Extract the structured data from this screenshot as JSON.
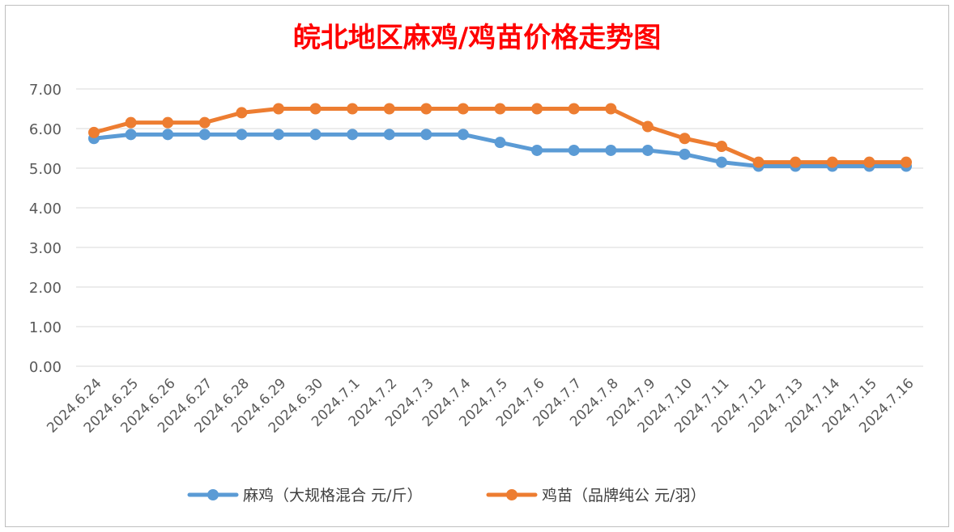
{
  "chart_data": {
    "type": "line",
    "title": "皖北地区麻鸡/鸡苗价格走势图",
    "categories": [
      "2024.6.24",
      "2024.6.25",
      "2024.6.26",
      "2024.6.27",
      "2024.6.28",
      "2024.6.29",
      "2024.6.30",
      "2024.7.1",
      "2024.7.2",
      "2024.7.3",
      "2024.7.4",
      "2024.7.5",
      "2024.7.6",
      "2024.7.7",
      "2024.7.8",
      "2024.7.9",
      "2024.7.10",
      "2024.7.11",
      "2024.7.12",
      "2024.7.13",
      "2024.7.14",
      "2024.7.15",
      "2024.7.16"
    ],
    "series": [
      {
        "name": "麻鸡（大规格混合 元/斤）",
        "color": "#5b9bd5",
        "values": [
          5.75,
          5.85,
          5.85,
          5.85,
          5.85,
          5.85,
          5.85,
          5.85,
          5.85,
          5.85,
          5.85,
          5.65,
          5.45,
          5.45,
          5.45,
          5.45,
          5.35,
          5.15,
          5.05,
          5.05,
          5.05,
          5.05,
          5.05
        ]
      },
      {
        "name": "鸡苗（品牌纯公 元/羽）",
        "color": "#ed7d31",
        "values": [
          5.9,
          6.15,
          6.15,
          6.15,
          6.4,
          6.5,
          6.5,
          6.5,
          6.5,
          6.5,
          6.5,
          6.5,
          6.5,
          6.5,
          6.5,
          6.05,
          5.75,
          5.55,
          5.15,
          5.15,
          5.15,
          5.15,
          5.15
        ]
      }
    ],
    "yticks": [
      "0.00",
      "1.00",
      "2.00",
      "3.00",
      "4.00",
      "5.00",
      "6.00",
      "7.00"
    ],
    "ylim": [
      0,
      7
    ],
    "grid": true,
    "legend_position": "bottom"
  }
}
